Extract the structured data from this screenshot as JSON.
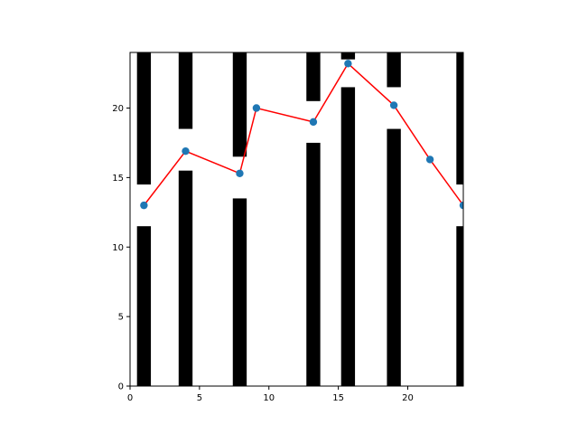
{
  "chart_data": {
    "type": "line",
    "title": "",
    "xlabel": "",
    "ylabel": "",
    "xlim": [
      0,
      24
    ],
    "ylim": [
      0,
      24
    ],
    "grid": false,
    "legend": "none",
    "xticks": [
      0,
      5,
      10,
      15,
      20
    ],
    "yticks": [
      0,
      5,
      10,
      15,
      20
    ],
    "series": [
      {
        "x": [
          1.0,
          4.0,
          7.9,
          9.1,
          13.2,
          15.7,
          19.0,
          21.6,
          24.0
        ],
        "y": [
          13.0,
          16.9,
          15.3,
          20.0,
          19.0,
          23.2,
          20.2,
          16.3,
          13.0
        ],
        "line_color": "#ff0000",
        "marker_color": "#1f77b4"
      }
    ],
    "bars": [
      {
        "x_center": 1.0,
        "y_top": 11.5
      },
      {
        "x_center": 4.0,
        "y_top": 15.5
      },
      {
        "x_center": 7.9,
        "y_top": 13.5
      },
      {
        "x_center": 13.2,
        "y_top": 17.5
      },
      {
        "x_center": 15.7,
        "y_top": 21.5
      },
      {
        "x_center": 19.0,
        "y_top": 18.5
      },
      {
        "x_center": 24.0,
        "y_top": 11.5
      }
    ],
    "upper_bars": [
      {
        "x_center": 1.0,
        "y_bottom": 14.5
      },
      {
        "x_center": 4.0,
        "y_bottom": 18.5
      },
      {
        "x_center": 7.9,
        "y_bottom": 16.5
      },
      {
        "x_center": 13.2,
        "y_bottom": 20.5
      },
      {
        "x_center": 15.7,
        "y_bottom": 23.5
      },
      {
        "x_center": 19.0,
        "y_bottom": 21.5
      },
      {
        "x_center": 24.0,
        "y_bottom": 14.5
      }
    ],
    "bar_width": 1.0,
    "bar_color": "#000000"
  }
}
